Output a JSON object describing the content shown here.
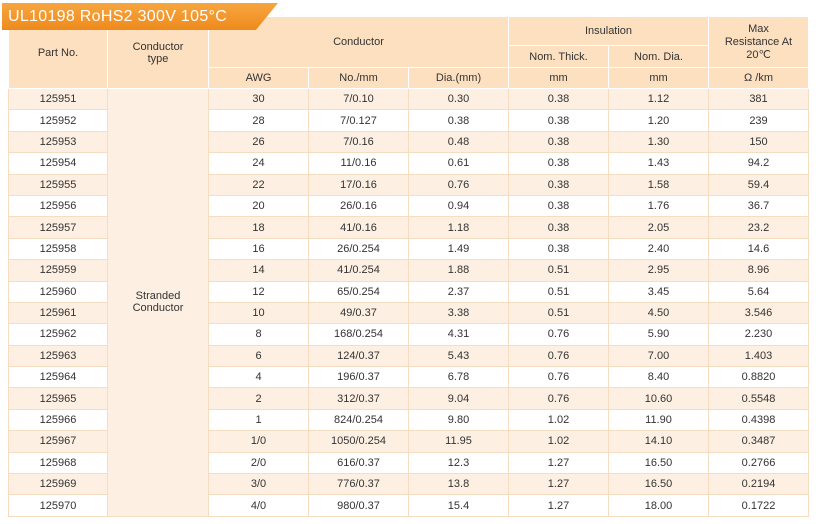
{
  "title": "UL10198  RoHS2  300V  105°C",
  "table": {
    "header": {
      "part_no": "Part No.",
      "conductor_type": "Conductor type",
      "conductor": "Conductor",
      "insulation": "Insulation",
      "max_resistance": "Max Resistance At 20℃",
      "awg": "AWG",
      "no_mm": "No./mm",
      "dia_mm": "Dia.(mm)",
      "nom_thick": "Nom. Thick.",
      "nom_dia": "Nom. Dia.",
      "thick_unit": "mm",
      "dia_unit": "mm",
      "resistance_unit": "Ω /km"
    },
    "conductor_type_value": "Stranded Conductor",
    "rows": [
      [
        "125951",
        "30",
        "7/0.10",
        "0.30",
        "0.38",
        "1.12",
        "381"
      ],
      [
        "125952",
        "28",
        "7/0.127",
        "0.38",
        "0.38",
        "1.20",
        "239"
      ],
      [
        "125953",
        "26",
        "7/0.16",
        "0.48",
        "0.38",
        "1.30",
        "150"
      ],
      [
        "125954",
        "24",
        "11/0.16",
        "0.61",
        "0.38",
        "1.43",
        "94.2"
      ],
      [
        "125955",
        "22",
        "17/0.16",
        "0.76",
        "0.38",
        "1.58",
        "59.4"
      ],
      [
        "125956",
        "20",
        "26/0.16",
        "0.94",
        "0.38",
        "1.76",
        "36.7"
      ],
      [
        "125957",
        "18",
        "41/0.16",
        "1.18",
        "0.38",
        "2.05",
        "23.2"
      ],
      [
        "125958",
        "16",
        "26/0.254",
        "1.49",
        "0.38",
        "2.40",
        "14.6"
      ],
      [
        "125959",
        "14",
        "41/0.254",
        "1.88",
        "0.51",
        "2.95",
        "8.96"
      ],
      [
        "125960",
        "12",
        "65/0.254",
        "2.37",
        "0.51",
        "3.45",
        "5.64"
      ],
      [
        "125961",
        "10",
        "49/0.37",
        "3.38",
        "0.51",
        "4.50",
        "3.546"
      ],
      [
        "125962",
        "8",
        "168/0.254",
        "4.31",
        "0.76",
        "5.90",
        "2.230"
      ],
      [
        "125963",
        "6",
        "124/0.37",
        "5.43",
        "0.76",
        "7.00",
        "1.403"
      ],
      [
        "125964",
        "4",
        "196/0.37",
        "6.78",
        "0.76",
        "8.40",
        "0.8820"
      ],
      [
        "125965",
        "2",
        "312/0.37",
        "9.04",
        "0.76",
        "10.60",
        "0.5548"
      ],
      [
        "125966",
        "1",
        "824/0.254",
        "9.80",
        "1.02",
        "11.90",
        "0.4398"
      ],
      [
        "125967",
        "1/0",
        "1050/0.254",
        "11.95",
        "1.02",
        "14.10",
        "0.3487"
      ],
      [
        "125968",
        "2/0",
        "616/0.37",
        "12.3",
        "1.27",
        "16.50",
        "0.2766"
      ],
      [
        "125969",
        "3/0",
        "776/0.37",
        "13.8",
        "1.27",
        "16.50",
        "0.2194"
      ],
      [
        "125970",
        "4/0",
        "980/0.37",
        "15.4",
        "1.27",
        "18.00",
        "0.1722"
      ]
    ]
  }
}
